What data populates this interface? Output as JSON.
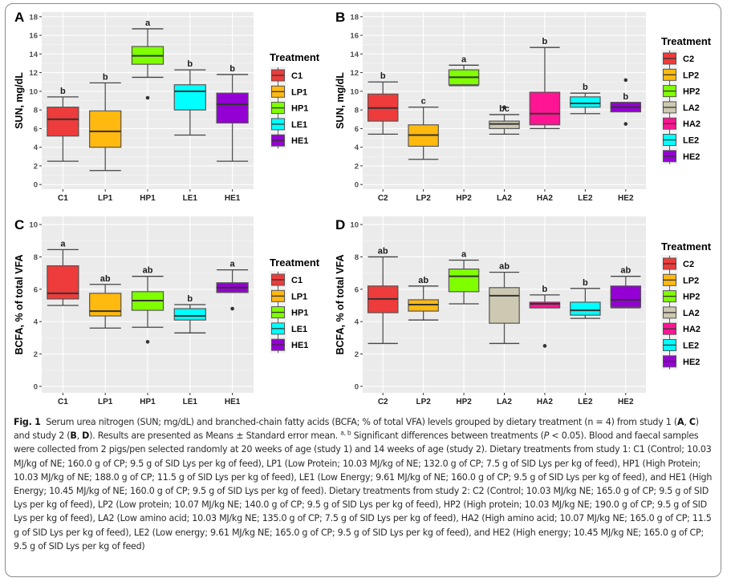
{
  "chart_data": [
    {
      "type": "boxplot",
      "panel": "A",
      "ylabel": "SUN, mg/dL",
      "ylim": [
        -0.5,
        18.5
      ],
      "yticks": [
        0,
        2,
        4,
        6,
        8,
        10,
        12,
        14,
        16,
        18
      ],
      "grid": true,
      "legend": {
        "title": "Treatment",
        "position": "right"
      },
      "categories": [
        "C1",
        "LP1",
        "HP1",
        "LE1",
        "HE1"
      ],
      "colors": [
        "#EE3B3B",
        "#FFB90F",
        "#7FFF00",
        "#00FFFF",
        "#9400D3"
      ],
      "series": [
        {
          "name": "C1",
          "min": 2.5,
          "q1": 5.2,
          "median": 7.0,
          "q3": 8.3,
          "max": 9.4,
          "outliers": [],
          "letter": "b"
        },
        {
          "name": "LP1",
          "min": 1.5,
          "q1": 4.0,
          "median": 5.7,
          "q3": 7.9,
          "max": 10.9,
          "outliers": [],
          "letter": "b"
        },
        {
          "name": "HP1",
          "min": 11.5,
          "q1": 12.9,
          "median": 13.8,
          "q3": 14.8,
          "max": 16.7,
          "outliers": [
            9.3
          ],
          "letter": "a"
        },
        {
          "name": "LE1",
          "min": 5.3,
          "q1": 8.0,
          "median": 10.0,
          "q3": 10.7,
          "max": 12.3,
          "outliers": [],
          "letter": "b"
        },
        {
          "name": "HE1",
          "min": 2.5,
          "q1": 6.6,
          "median": 8.6,
          "q3": 9.8,
          "max": 11.8,
          "outliers": [],
          "letter": "b"
        }
      ]
    },
    {
      "type": "boxplot",
      "panel": "B",
      "ylabel": "SUN, mg/dL",
      "ylim": [
        -0.5,
        18.5
      ],
      "yticks": [
        0,
        2,
        4,
        6,
        8,
        10,
        12,
        14,
        16,
        18
      ],
      "grid": true,
      "legend": {
        "title": "Treatment",
        "position": "right"
      },
      "categories": [
        "C2",
        "LP2",
        "HP2",
        "LA2",
        "HA2",
        "LE2",
        "HE2"
      ],
      "colors": [
        "#EE3B3B",
        "#FFB90F",
        "#7FFF00",
        "#CDC8B1",
        "#FF1493",
        "#00FFFF",
        "#9400D3"
      ],
      "series": [
        {
          "name": "C2",
          "min": 5.4,
          "q1": 6.8,
          "median": 8.2,
          "q3": 9.7,
          "max": 11.0,
          "outliers": [],
          "letter": "b"
        },
        {
          "name": "LP2",
          "min": 2.7,
          "q1": 4.1,
          "median": 5.3,
          "q3": 6.4,
          "max": 8.3,
          "outliers": [],
          "letter": "c"
        },
        {
          "name": "HP2",
          "min": 10.6,
          "q1": 10.7,
          "median": 11.5,
          "q3": 12.3,
          "max": 12.8,
          "outliers": [],
          "letter": "a"
        },
        {
          "name": "LA2",
          "min": 5.4,
          "q1": 6.0,
          "median": 6.5,
          "q3": 6.8,
          "max": 7.5,
          "outliers": [
            8.3
          ],
          "letter": "bc"
        },
        {
          "name": "HA2",
          "min": 6.0,
          "q1": 6.4,
          "median": 7.6,
          "q3": 9.9,
          "max": 14.7,
          "outliers": [],
          "letter": "b"
        },
        {
          "name": "LE2",
          "min": 7.6,
          "q1": 8.3,
          "median": 8.7,
          "q3": 9.4,
          "max": 9.8,
          "outliers": [],
          "letter": "b"
        },
        {
          "name": "HE2",
          "min": 7.8,
          "q1": 7.8,
          "median": 8.3,
          "q3": 8.8,
          "max": 8.8,
          "outliers": [
            11.2,
            6.5
          ],
          "letter": "b"
        }
      ]
    },
    {
      "type": "boxplot",
      "panel": "C",
      "ylabel": "BCFA, % of total VFA",
      "ylim": [
        -0.4,
        10.5
      ],
      "yticks": [
        0,
        2,
        4,
        6,
        8,
        10
      ],
      "grid": true,
      "legend": {
        "title": "Treatment",
        "position": "right"
      },
      "categories": [
        "C1",
        "LP1",
        "HP1",
        "LE1",
        "HE1"
      ],
      "colors": [
        "#EE3B3B",
        "#FFB90F",
        "#7FFF00",
        "#00FFFF",
        "#9400D3"
      ],
      "series": [
        {
          "name": "C1",
          "min": 5.0,
          "q1": 5.4,
          "median": 5.75,
          "q3": 7.45,
          "max": 8.45,
          "outliers": [],
          "letter": "a"
        },
        {
          "name": "LP1",
          "min": 3.6,
          "q1": 4.35,
          "median": 4.65,
          "q3": 5.75,
          "max": 6.3,
          "outliers": [],
          "letter": "ab"
        },
        {
          "name": "HP1",
          "min": 3.65,
          "q1": 4.7,
          "median": 5.3,
          "q3": 5.85,
          "max": 6.8,
          "outliers": [
            2.75
          ],
          "letter": "ab"
        },
        {
          "name": "LE1",
          "min": 3.3,
          "q1": 4.1,
          "median": 4.35,
          "q3": 4.8,
          "max": 5.05,
          "outliers": [],
          "letter": "b"
        },
        {
          "name": "HE1",
          "min": 5.8,
          "q1": 5.8,
          "median": 6.1,
          "q3": 6.4,
          "max": 7.2,
          "outliers": [
            4.8
          ],
          "letter": "a"
        }
      ]
    },
    {
      "type": "boxplot",
      "panel": "D",
      "ylabel": "BCFA, % of total VFA",
      "ylim": [
        -0.4,
        10.5
      ],
      "yticks": [
        0,
        2,
        4,
        6,
        8,
        10
      ],
      "grid": true,
      "legend": {
        "title": "Treatment",
        "position": "right"
      },
      "categories": [
        "C2",
        "LP2",
        "HP2",
        "LA2",
        "HA2",
        "LE2",
        "HE2"
      ],
      "colors": [
        "#EE3B3B",
        "#FFB90F",
        "#7FFF00",
        "#CDC8B1",
        "#FF1493",
        "#00FFFF",
        "#9400D3"
      ],
      "series": [
        {
          "name": "C2",
          "min": 2.65,
          "q1": 4.55,
          "median": 5.4,
          "q3": 6.2,
          "max": 8.0,
          "outliers": [],
          "letter": "ab"
        },
        {
          "name": "LP2",
          "min": 4.1,
          "q1": 4.65,
          "median": 5.05,
          "q3": 5.35,
          "max": 6.2,
          "outliers": [],
          "letter": "ab"
        },
        {
          "name": "HP2",
          "min": 5.1,
          "q1": 5.85,
          "median": 6.8,
          "q3": 7.25,
          "max": 7.8,
          "outliers": [],
          "letter": "a"
        },
        {
          "name": "LA2",
          "min": 2.65,
          "q1": 3.9,
          "median": 5.6,
          "q3": 6.1,
          "max": 7.05,
          "outliers": [],
          "letter": "ab"
        },
        {
          "name": "HA2",
          "min": 4.85,
          "q1": 4.85,
          "median": 5.1,
          "q3": 5.2,
          "max": 5.65,
          "outliers": [
            2.5
          ],
          "letter": "b"
        },
        {
          "name": "LE2",
          "min": 4.2,
          "q1": 4.4,
          "median": 4.7,
          "q3": 5.2,
          "max": 6.05,
          "outliers": [],
          "letter": "b"
        },
        {
          "name": "HE2",
          "min": 4.85,
          "q1": 4.9,
          "median": 5.35,
          "q3": 6.2,
          "max": 6.8,
          "outliers": [],
          "letter": "ab"
        }
      ]
    }
  ],
  "caption": {
    "label": "Fig. 1",
    "part1": "Serum urea nitrogen (SUN; mg/dL) and branched-chain fatty acids (BCFA; % of total VFA) levels grouped by dietary treatment (n = 4) from study 1 (",
    "bold_A": "A",
    "sep1": ", ",
    "bold_C": "C",
    "part2": ") and study 2 (",
    "bold_B": "B",
    "sep2": ", ",
    "bold_D": "D",
    "part3": "). Results are presented as Means ± Standard error mean. ",
    "superscript": "a, b",
    "part4": " Significant differences between treatments (",
    "italic_P": "P",
    "part5": " < 0.05). Blood and faecal samples were collected from 2 pigs/pen selected randomly at 20 weeks of age (study 1) and 14 weeks of age (study 2). Dietary treatments from study 1: C1 (Control; 10.03 MJ/kg of NE; 160.0 g of CP; 9.5 g of SID Lys per kg of feed), LP1 (Low Protein; 10.03 MJ/kg of NE; 132.0 g of CP; 7.5 g of SID Lys per kg of feed), HP1 (High Protein; 10.03 MJ/kg of NE; 188.0 g of CP; 11.5 g of SID Lys per kg of feed), LE1 (Low Energy; 9.61 MJ/kg of NE; 160.0 g of CP; 9.5 g of SID Lys per kg of feed), and HE1 (High Energy; 10.45 MJ/kg of NE; 160.0 g of CP; 9.5 g of SID Lys per kg of feed). Dietary treatments from study 2: C2 (Control; 10.03 MJ/kg NE; 165.0 g of CP; 9.5 g of SID Lys per kg of feed), LP2 (Low protein; 10.07 MJ/kg NE; 140.0 g of CP; 9.5 g of SID Lys per kg of feed), HP2 (High protein; 10.03 MJ/kg NE; 190.0 g of CP; 9.5 g of SID Lys per kg of feed), LA2 (Low amino acid; 10.03 MJ/kg NE; 135.0 g of CP; 7.5 g of SID Lys per kg of feed), HA2 (High amino acid; 10.07 MJ/kg NE; 165.0 g of CP; 11.5 g of SID Lys per kg of feed), LE2 (Low energy; 9.61 MJ/kg NE; 165.0 g of CP; 9.5 g of SID Lys per kg of feed), and HE2 (High energy; 10.45 MJ/kg NE; 165.0 g of CP; 9.5 g of SID Lys per kg of feed)"
  }
}
